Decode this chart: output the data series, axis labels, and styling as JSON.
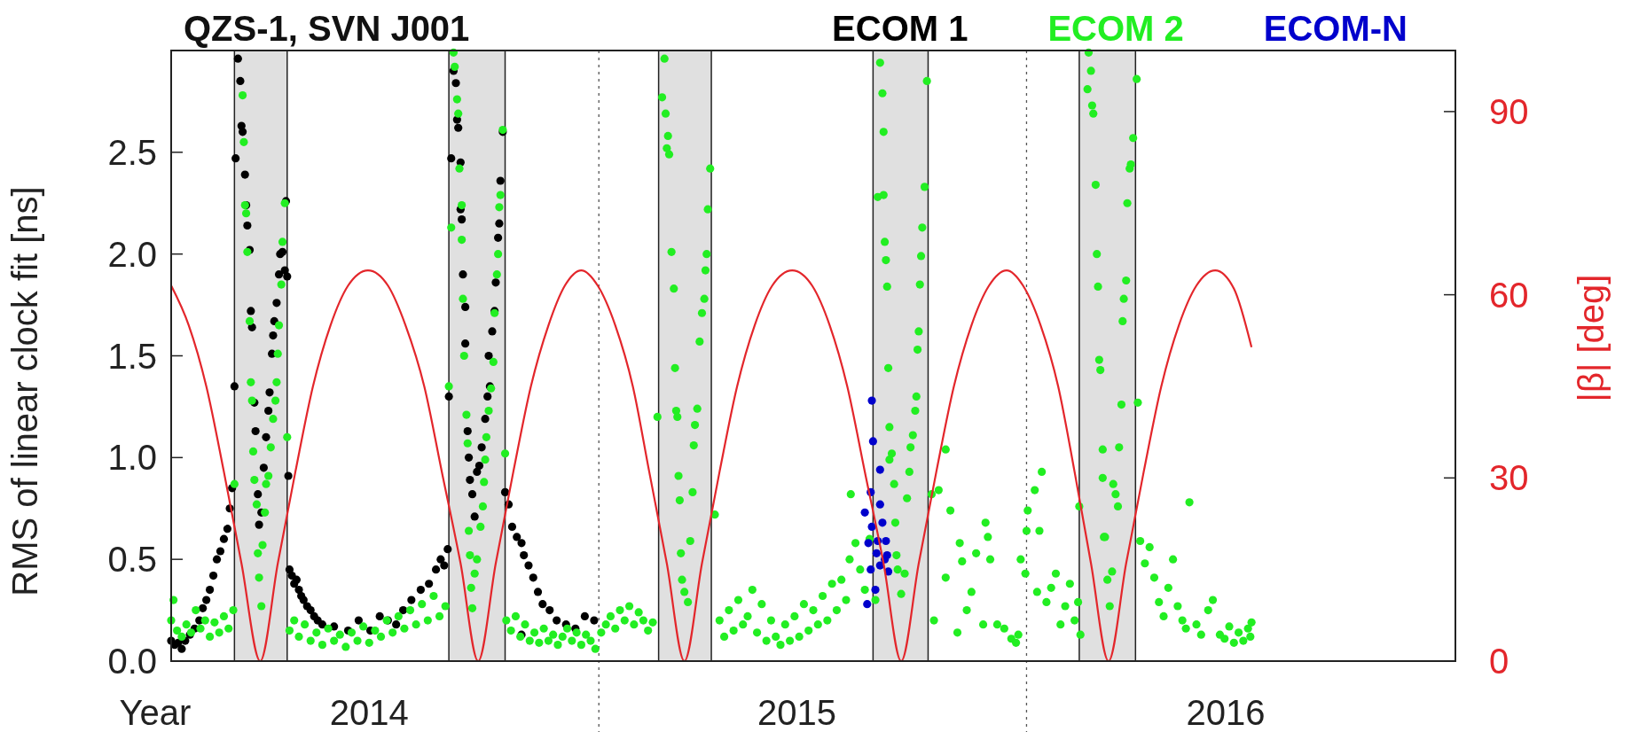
{
  "chart_data": {
    "type": "scatter",
    "title": "QZS-1, SVN J001",
    "xlabel": "Year",
    "ylabel": "RMS of linear clock fit [ns]",
    "y2label": "|β| [deg]",
    "xlim": [
      "2014-01-01",
      "2017-01-01"
    ],
    "xticks": [
      {
        "value": "2014-06-19",
        "label": "2014"
      },
      {
        "value": "2015-06-19",
        "label": "2015"
      },
      {
        "value": "2016-06-19",
        "label": "2016"
      }
    ],
    "ylim": [
      0,
      3
    ],
    "yticks": [
      {
        "value": 0,
        "label": "0.0"
      },
      {
        "value": 0.5,
        "label": "0.5"
      },
      {
        "value": 1,
        "label": "1.0"
      },
      {
        "value": 1.5,
        "label": "1.5"
      },
      {
        "value": 2,
        "label": "2.0"
      },
      {
        "value": 2.5,
        "label": "2.5"
      }
    ],
    "y2lim": [
      0,
      100
    ],
    "y2ticks": [
      0,
      30,
      60,
      90
    ],
    "marker": "circle",
    "legend": "top right",
    "ref_lines": [
      {
        "axis": "x",
        "value": "2015-01-01",
        "line_style": "dotted",
        "color": "#555555"
      },
      {
        "axis": "x",
        "value": "2016-01-01",
        "line_style": "dotted",
        "color": "#555555"
      }
    ],
    "bands": [
      {
        "axis": "x",
        "from": "2014-02-24",
        "to": "2014-04-10",
        "color": "#e0e0e0"
      },
      {
        "axis": "x",
        "from": "2014-08-26",
        "to": "2014-10-13",
        "color": "#e0e0e0"
      },
      {
        "axis": "x",
        "from": "2015-02-21",
        "to": "2015-04-07",
        "color": "#e0e0e0"
      },
      {
        "axis": "x",
        "from": "2015-08-23",
        "to": "2015-10-09",
        "color": "#e0e0e0"
      },
      {
        "axis": "x",
        "from": "2016-02-15",
        "to": "2016-04-03",
        "color": "#e0e0e0"
      }
    ],
    "series": [
      {
        "name": "ECOM 1",
        "color": "#000000",
        "x": [
          "2014-01-01",
          "2014-01-04",
          "2014-01-07",
          "2014-01-10",
          "2014-01-13",
          "2014-01-17",
          "2014-01-21",
          "2014-01-25",
          "2014-01-28",
          "2014-01-31",
          "2014-02-03",
          "2014-02-06",
          "2014-02-09",
          "2014-02-12",
          "2014-02-15",
          "2014-02-18",
          "2014-02-20",
          "2014-02-22",
          "2014-02-24",
          "2014-02-25",
          "2014-02-27",
          "2014-03-01",
          "2014-03-02",
          "2014-03-03",
          "2014-03-05",
          "2014-03-06",
          "2014-03-07",
          "2014-03-09",
          "2014-03-10",
          "2014-03-11",
          "2014-03-13",
          "2014-03-14",
          "2014-03-16",
          "2014-03-17",
          "2014-03-19",
          "2014-03-21",
          "2014-03-23",
          "2014-03-25",
          "2014-03-26",
          "2014-03-28",
          "2014-03-29",
          "2014-03-30",
          "2014-04-01",
          "2014-04-03",
          "2014-04-04",
          "2014-04-06",
          "2014-04-08",
          "2014-04-09",
          "2014-04-10",
          "2014-04-11",
          "2014-04-12",
          "2014-04-14",
          "2014-04-16",
          "2014-04-18",
          "2014-04-20",
          "2014-04-22",
          "2014-04-24",
          "2014-04-27",
          "2014-04-30",
          "2014-05-03",
          "2014-05-06",
          "2014-05-10",
          "2014-05-20",
          "2014-06-01",
          "2014-06-10",
          "2014-06-20",
          "2014-06-28",
          "2014-07-05",
          "2014-07-12",
          "2014-07-18",
          "2014-07-25",
          "2014-08-02",
          "2014-08-09",
          "2014-08-15",
          "2014-08-19",
          "2014-08-22",
          "2014-08-25",
          "2014-08-26",
          "2014-08-28",
          "2014-08-30",
          "2014-09-01",
          "2014-09-02",
          "2014-09-03",
          "2014-09-05",
          "2014-09-05",
          "2014-09-06",
          "2014-09-07",
          "2014-09-09",
          "2014-09-09",
          "2014-09-11",
          "2014-09-12",
          "2014-09-13",
          "2014-09-15",
          "2014-09-17",
          "2014-09-19",
          "2014-09-21",
          "2014-09-23",
          "2014-09-26",
          "2014-09-28",
          "2014-09-29",
          "2014-09-30",
          "2014-10-02",
          "2014-10-04",
          "2014-10-05",
          "2014-10-07",
          "2014-10-08",
          "2014-10-09",
          "2014-10-11",
          "2014-10-13",
          "2014-10-16",
          "2014-10-19",
          "2014-10-23",
          "2014-10-27",
          "2014-10-27",
          "2014-10-29",
          "2014-11-02",
          "2014-11-06",
          "2014-11-10",
          "2014-11-14",
          "2014-11-20",
          "2014-11-26",
          "2014-12-04",
          "2014-12-12",
          "2014-12-20",
          "2014-12-28"
        ],
        "values": [
          0.1,
          0.08,
          0.09,
          0.06,
          0.1,
          0.13,
          0.16,
          0.2,
          0.26,
          0.3,
          0.35,
          0.42,
          0.5,
          0.54,
          0.6,
          0.65,
          0.75,
          0.85,
          1.35,
          2.47,
          2.96,
          2.85,
          2.63,
          2.6,
          2.39,
          2.24,
          2.14,
          2.02,
          1.72,
          1.64,
          1.27,
          1.13,
          0.82,
          0.67,
          0.73,
          0.95,
          1.1,
          1.23,
          1.32,
          1.51,
          1.6,
          1.67,
          1.76,
          1.9,
          2.0,
          2.01,
          1.92,
          2.26,
          1.89,
          0.91,
          0.45,
          0.42,
          0.38,
          0.4,
          0.35,
          0.32,
          0.3,
          0.27,
          0.25,
          0.22,
          0.2,
          0.18,
          0.17,
          0.15,
          0.2,
          0.15,
          0.22,
          0.2,
          0.18,
          0.25,
          0.3,
          0.35,
          0.38,
          0.45,
          0.5,
          0.47,
          0.55,
          1.3,
          2.47,
          2.9,
          2.84,
          2.66,
          2.62,
          2.45,
          2.22,
          2.17,
          1.9,
          1.74,
          1.56,
          1.13,
          1.0,
          0.89,
          0.82,
          0.71,
          0.93,
          0.96,
          1.05,
          1.19,
          1.3,
          1.5,
          1.35,
          1.62,
          1.72,
          1.86,
          2.08,
          2.15,
          2.36,
          2.6,
          0.83,
          0.77,
          0.66,
          0.61,
          0.58,
          0.13,
          0.52,
          0.47,
          0.41,
          0.34,
          0.28,
          0.25,
          0.2,
          0.18,
          0.16,
          0.22,
          0.2
        ]
      },
      {
        "name": "ECOM 2",
        "color": "#22ee22",
        "x": [
          "2014-01-01",
          "2014-01-03",
          "2014-01-06",
          "2014-01-10",
          "2014-01-14",
          "2014-01-18",
          "2014-01-22",
          "2014-01-26",
          "2014-01-30",
          "2014-02-03",
          "2014-02-07",
          "2014-02-11",
          "2014-02-15",
          "2014-02-19",
          "2014-02-23",
          "2014-02-24",
          "2014-03-03",
          "2014-03-04",
          "2014-03-05",
          "2014-03-06",
          "2014-03-07",
          "2014-03-09",
          "2014-03-10",
          "2014-03-11",
          "2014-03-12",
          "2014-03-13",
          "2014-03-15",
          "2014-03-16",
          "2014-03-17",
          "2014-03-19",
          "2014-03-20",
          "2014-03-22",
          "2014-03-23",
          "2014-03-25",
          "2014-03-27",
          "2014-03-29",
          "2014-03-31",
          "2014-04-01",
          "2014-04-02",
          "2014-04-03",
          "2014-04-05",
          "2014-04-06",
          "2014-04-08",
          "2014-04-10",
          "2014-04-12",
          "2014-04-16",
          "2014-04-20",
          "2014-04-25",
          "2014-04-30",
          "2014-05-05",
          "2014-05-10",
          "2014-05-15",
          "2014-05-20",
          "2014-05-25",
          "2014-05-30",
          "2014-06-04",
          "2014-06-09",
          "2014-06-14",
          "2014-06-19",
          "2014-06-24",
          "2014-06-29",
          "2014-07-04",
          "2014-07-09",
          "2014-07-14",
          "2014-07-19",
          "2014-07-24",
          "2014-07-29",
          "2014-08-03",
          "2014-08-08",
          "2014-08-13",
          "2014-08-18",
          "2014-08-23",
          "2014-08-26",
          "2014-08-28",
          "2014-08-30",
          "2014-08-31",
          "2014-09-02",
          "2014-09-03",
          "2014-09-04",
          "2014-09-06",
          "2014-09-06",
          "2014-09-07",
          "2014-09-08",
          "2014-09-10",
          "2014-09-11",
          "2014-09-12",
          "2014-09-13",
          "2014-09-14",
          "2014-09-15",
          "2014-09-17",
          "2014-09-19",
          "2014-09-22",
          "2014-09-24",
          "2014-09-25",
          "2014-09-26",
          "2014-09-27",
          "2014-09-29",
          "2014-10-01",
          "2014-10-03",
          "2014-10-04",
          "2014-10-06",
          "2014-10-07",
          "2014-10-08",
          "2014-10-09",
          "2014-10-11",
          "2014-10-13",
          "2014-10-14",
          "2014-10-18",
          "2014-10-22",
          "2014-10-26",
          "2014-10-30",
          "2014-11-03",
          "2014-11-07",
          "2014-11-11",
          "2014-11-15",
          "2014-11-19",
          "2014-11-23",
          "2014-11-27",
          "2014-12-01",
          "2014-12-05",
          "2014-12-09",
          "2014-12-13",
          "2014-12-17",
          "2014-12-21",
          "2014-12-25",
          "2014-12-29",
          "2015-01-03",
          "2015-01-07",
          "2015-01-11",
          "2015-01-15",
          "2015-01-19",
          "2015-01-23",
          "2015-01-27",
          "2015-01-31",
          "2015-02-04",
          "2015-02-08",
          "2015-02-12",
          "2015-02-16",
          "2015-02-20",
          "2015-02-24",
          "2015-02-26",
          "2015-02-27",
          "2015-02-28",
          "2015-03-01",
          "2015-03-02",
          "2015-03-04",
          "2015-03-06",
          "2015-03-07",
          "2015-03-08",
          "2015-03-09",
          "2015-03-10",
          "2015-03-11",
          "2015-03-12",
          "2015-03-13",
          "2015-03-15",
          "2015-03-18",
          "2015-03-20",
          "2015-03-22",
          "2015-03-23",
          "2015-03-24",
          "2015-03-26",
          "2015-03-28",
          "2015-03-30",
          "2015-04-01",
          "2015-04-02",
          "2015-04-03",
          "2015-04-04",
          "2015-04-06",
          "2015-04-10",
          "2015-04-14",
          "2015-04-18",
          "2015-04-22",
          "2015-04-26",
          "2015-04-30",
          "2015-05-04",
          "2015-05-08",
          "2015-05-12",
          "2015-05-16",
          "2015-05-20",
          "2015-05-24",
          "2015-05-28",
          "2015-06-01",
          "2015-06-05",
          "2015-06-09",
          "2015-06-13",
          "2015-06-17",
          "2015-06-21",
          "2015-06-25",
          "2015-06-29",
          "2015-07-03",
          "2015-07-07",
          "2015-07-11",
          "2015-07-15",
          "2015-07-19",
          "2015-07-23",
          "2015-07-27",
          "2015-07-31",
          "2015-08-03",
          "2015-08-04",
          "2015-08-08",
          "2015-08-12",
          "2015-08-16",
          "2015-08-20",
          "2015-08-25",
          "2015-08-27",
          "2015-08-29",
          "2015-08-31",
          "2015-09-01",
          "2015-09-01",
          "2015-09-02",
          "2015-09-03",
          "2015-09-04",
          "2015-09-05",
          "2015-09-06",
          "2015-09-06",
          "2015-09-08",
          "2015-09-10",
          "2015-09-11",
          "2015-09-12",
          "2015-09-13",
          "2015-09-16",
          "2015-09-19",
          "2015-09-21",
          "2015-09-23",
          "2015-09-24",
          "2015-09-26",
          "2015-09-28",
          "2015-09-29",
          "2015-09-30",
          "2015-10-01",
          "2015-10-02",
          "2015-10-03",
          "2015-10-04",
          "2015-10-06",
          "2015-10-08",
          "2015-10-12",
          "2015-10-14",
          "2015-10-18",
          "2015-10-24",
          "2015-10-24",
          "2015-10-28",
          "2015-11-03",
          "2015-11-05",
          "2015-11-07",
          "2015-11-11",
          "2015-11-15",
          "2015-11-19",
          "2015-11-25",
          "2015-11-27",
          "2015-11-29",
          "2015-12-01",
          "2015-12-07",
          "2015-12-13",
          "2015-12-19",
          "2015-12-23",
          "2015-12-25",
          "2015-12-27",
          "2015-12-31",
          "2016-01-01",
          "2016-01-02",
          "2016-01-08",
          "2016-01-10",
          "2016-01-12",
          "2016-01-14",
          "2016-01-18",
          "2016-01-22",
          "2016-01-26",
          "2016-01-30",
          "2016-02-03",
          "2016-02-07",
          "2016-02-11",
          "2016-02-14",
          "2016-02-15",
          "2016-02-16",
          "2016-02-22",
          "2016-02-23",
          "2016-02-25",
          "2016-02-26",
          "2016-02-27",
          "2016-02-29",
          "2016-03-01",
          "2016-03-02",
          "2016-03-03",
          "2016-03-04",
          "2016-03-06",
          "2016-03-06",
          "2016-03-07",
          "2016-03-08",
          "2016-03-10",
          "2016-03-12",
          "2016-03-14",
          "2016-03-15",
          "2016-03-17",
          "2016-03-19",
          "2016-03-20",
          "2016-03-22",
          "2016-03-23",
          "2016-03-24",
          "2016-03-26",
          "2016-03-27",
          "2016-03-29",
          "2016-03-30",
          "2016-04-01",
          "2016-04-04",
          "2016-04-05",
          "2016-04-07",
          "2016-04-11",
          "2016-04-15",
          "2016-04-19",
          "2016-04-23",
          "2016-04-27",
          "2016-05-01",
          "2016-05-05",
          "2016-05-09",
          "2016-05-13",
          "2016-05-16",
          "2016-05-19",
          "2016-05-25",
          "2016-05-29",
          "2016-06-04",
          "2016-06-08",
          "2016-06-14",
          "2016-06-18",
          "2016-06-22",
          "2016-06-26",
          "2016-06-30",
          "2016-07-04",
          "2016-07-08",
          "2016-07-10",
          "2016-07-11"
        ],
        "values": [
          0.2,
          0.3,
          0.15,
          0.12,
          0.18,
          0.14,
          0.25,
          0.16,
          0.2,
          0.12,
          0.19,
          0.14,
          0.22,
          0.16,
          0.25,
          0.87,
          2.78,
          2.55,
          2.24,
          2.2,
          2.01,
          1.67,
          1.37,
          1.28,
          1.03,
          0.89,
          0.77,
          0.53,
          0.41,
          0.27,
          0.57,
          0.73,
          0.87,
          0.91,
          1.05,
          1.19,
          1.28,
          1.37,
          1.51,
          1.65,
          1.85,
          2.06,
          2.25,
          1.1,
          0.15,
          0.2,
          0.12,
          0.18,
          0.1,
          0.14,
          0.08,
          0.16,
          0.1,
          0.13,
          0.07,
          0.14,
          0.1,
          0.17,
          0.09,
          0.15,
          0.12,
          0.2,
          0.14,
          0.22,
          0.16,
          0.25,
          0.18,
          0.28,
          0.2,
          0.32,
          0.22,
          0.27,
          1.35,
          2.13,
          2.99,
          2.92,
          2.76,
          2.69,
          2.42,
          2.24,
          2.07,
          1.78,
          1.5,
          1.21,
          1.07,
          0.64,
          0.52,
          0.36,
          0.26,
          0.43,
          0.5,
          0.66,
          0.76,
          0.88,
          0.99,
          1.1,
          1.23,
          1.34,
          1.47,
          1.71,
          1.9,
          2.0,
          2.23,
          2.29,
          2.61,
          1.02,
          0.2,
          0.15,
          0.22,
          0.12,
          0.18,
          0.1,
          0.14,
          0.09,
          0.16,
          0.1,
          0.13,
          0.08,
          0.12,
          0.16,
          0.1,
          0.14,
          0.08,
          0.13,
          0.1,
          0.06,
          0.14,
          0.18,
          0.22,
          0.16,
          0.25,
          0.2,
          0.27,
          0.18,
          0.24,
          0.2,
          0.15,
          0.19,
          1.2,
          2.77,
          2.96,
          2.69,
          2.52,
          2.58,
          2.49,
          2.01,
          1.83,
          1.44,
          1.23,
          1.2,
          0.91,
          0.79,
          0.53,
          0.4,
          0.34,
          0.29,
          0.59,
          0.83,
          1.06,
          1.16,
          1.24,
          1.57,
          1.71,
          1.78,
          1.92,
          2.0,
          2.22,
          2.42,
          0.72,
          0.2,
          0.12,
          0.25,
          0.15,
          0.3,
          0.18,
          0.22,
          0.35,
          0.14,
          0.28,
          0.1,
          0.2,
          0.12,
          0.08,
          0.18,
          0.1,
          0.22,
          0.12,
          0.28,
          0.15,
          0.25,
          0.18,
          0.32,
          0.2,
          0.38,
          0.25,
          0.4,
          0.3,
          0.5,
          0.82,
          0.58,
          0.45,
          0.35,
          0.6,
          0.3,
          2.28,
          2.94,
          2.79,
          2.6,
          2.29,
          2.06,
          1.97,
          1.84,
          1.44,
          0.99,
          1.15,
          1.02,
          0.87,
          0.68,
          0.52,
          0.45,
          0.33,
          0.43,
          0.8,
          0.93,
          1.05,
          1.11,
          1.23,
          1.3,
          1.53,
          1.62,
          1.85,
          1.99,
          2.13,
          2.33,
          2.85,
          0.82,
          0.2,
          0.84,
          0.41,
          1.04,
          0.74,
          0.14,
          0.58,
          0.49,
          0.25,
          0.34,
          0.53,
          0.18,
          0.68,
          0.61,
          0.5,
          0.18,
          0.16,
          0.11,
          0.09,
          0.13,
          0.5,
          0.43,
          0.64,
          0.74,
          0.84,
          0.34,
          0.64,
          0.93,
          0.29,
          0.36,
          0.43,
          0.18,
          0.27,
          0.38,
          0.2,
          0.29,
          0.76,
          0.13,
          2.81,
          2.99,
          2.9,
          2.73,
          2.69,
          2.34,
          2.0,
          1.84,
          1.48,
          1.43,
          1.04,
          0.9,
          0.61,
          0.61,
          0.4,
          0.27,
          0.44,
          0.87,
          0.82,
          0.76,
          1.05,
          1.26,
          1.67,
          1.78,
          1.87,
          2.25,
          2.42,
          2.44,
          2.57,
          2.86,
          1.27,
          0.59,
          0.48,
          0.56,
          0.41,
          0.29,
          0.22,
          0.36,
          0.5,
          0.27,
          0.2,
          0.16,
          0.78,
          0.18,
          0.13,
          0.25,
          0.3,
          0.13,
          0.11,
          0.17,
          0.09,
          0.14,
          0.1,
          0.16,
          0.12,
          0.19
        ]
      },
      {
        "name": "ECOM-N",
        "color": "#0000cc",
        "x": [
          "2015-08-22",
          "2015-08-23",
          "2015-08-29",
          "2015-08-21",
          "2015-08-29",
          "2015-08-16",
          "2015-08-22",
          "2015-08-31",
          "2015-08-19",
          "2015-08-27",
          "2015-09-03",
          "2015-08-26",
          "2015-09-04",
          "2015-08-21",
          "2015-09-05",
          "2015-08-25",
          "2015-08-18",
          "2015-09-02",
          "2015-08-29"
        ],
        "values": [
          1.28,
          1.08,
          0.94,
          0.83,
          0.77,
          0.73,
          0.66,
          0.68,
          0.58,
          0.59,
          0.59,
          0.53,
          0.52,
          0.45,
          0.44,
          0.35,
          0.28,
          0.5,
          0.47
        ]
      },
      {
        "type": "line",
        "axis": "y2",
        "marker": "none",
        "color": "#e3262b",
        "x": [
          "2014-01-01",
          "2014-01-16",
          "2014-01-31",
          "2014-02-15",
          "2014-03-02",
          "2014-03-18",
          "2014-04-02",
          "2014-04-17",
          "2014-05-02",
          "2014-05-17",
          "2014-06-01",
          "2014-06-18",
          "2014-07-05",
          "2014-07-20",
          "2014-08-05",
          "2014-08-20",
          "2014-09-05",
          "2014-09-20",
          "2014-10-05",
          "2014-10-20",
          "2014-11-04",
          "2014-11-19",
          "2014-12-03",
          "2014-12-17",
          "2014-12-31",
          "2015-01-15",
          "2015-01-30",
          "2015-02-13",
          "2015-02-28",
          "2015-03-15",
          "2015-03-30",
          "2015-04-14",
          "2015-04-29",
          "2015-05-14",
          "2015-05-29",
          "2015-06-15",
          "2015-07-02",
          "2015-07-17",
          "2015-08-01",
          "2015-08-16",
          "2015-09-01",
          "2015-09-16",
          "2015-10-01",
          "2015-10-16",
          "2015-10-31",
          "2015-11-15",
          "2015-11-30",
          "2015-12-15",
          "2015-12-29",
          "2016-01-13",
          "2016-01-28",
          "2016-02-11",
          "2016-02-25",
          "2016-03-11",
          "2016-03-26",
          "2016-04-10",
          "2016-04-25",
          "2016-05-10",
          "2016-05-25",
          "2016-06-10",
          "2016-06-26",
          "2016-07-11"
        ],
        "values": [
          61.5,
          55,
          45,
          31,
          16,
          0,
          16,
          31,
          45,
          55,
          61.5,
          64,
          61.5,
          55,
          45,
          31,
          16,
          0,
          16,
          31,
          45,
          55,
          61.5,
          64,
          61.5,
          55,
          45,
          31,
          16,
          0,
          16,
          31,
          45,
          55,
          61.5,
          64,
          61.5,
          55,
          45,
          31,
          16,
          0,
          16,
          31,
          45,
          55,
          61.5,
          64,
          61.5,
          55,
          45,
          31,
          16,
          0,
          16,
          31,
          45,
          55,
          61.5,
          64,
          61,
          51.4
        ]
      }
    ]
  }
}
